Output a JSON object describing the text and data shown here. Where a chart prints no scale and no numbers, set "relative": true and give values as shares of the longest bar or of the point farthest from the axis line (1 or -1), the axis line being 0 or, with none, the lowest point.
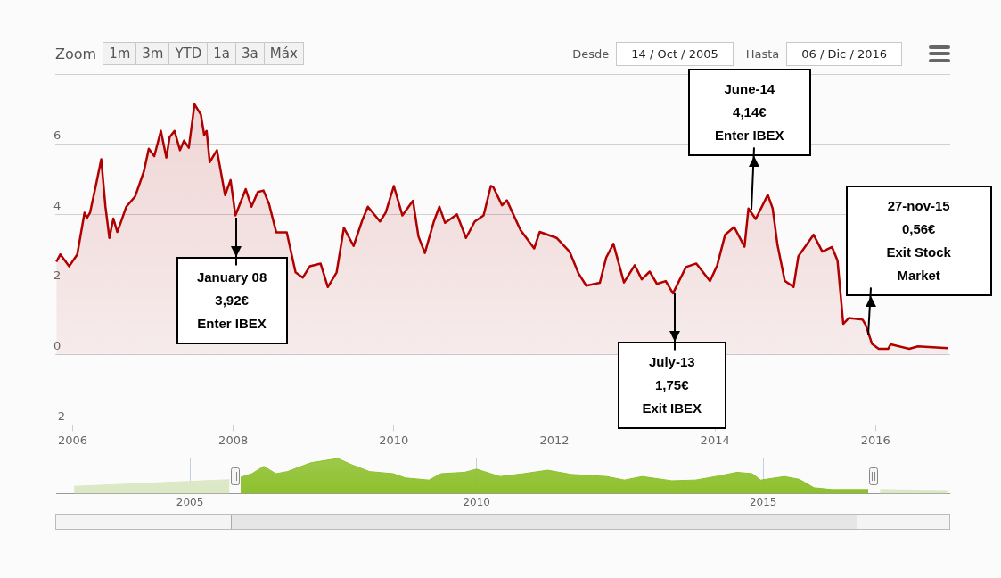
{
  "chart_data": [
    {
      "type": "area",
      "grid": "y",
      "xlim": [
        "2005-10-14",
        "2016-12-06"
      ],
      "xticks": [
        "2006",
        "2008",
        "2010",
        "2012",
        "2014",
        "2016"
      ],
      "ylim": [
        -2,
        8
      ],
      "yticks": [
        -2,
        0,
        2,
        4,
        6,
        {
          "value": 8,
          "label": null
        }
      ],
      "annotations": [
        "Zoom",
        "1m",
        "3m",
        "YTD",
        "1a",
        "3a",
        "Máx",
        "Desde",
        "14 / Oct / 2005",
        "Hasta",
        "06 / Dic / 2016",
        {
          "text": "January 08\n3,92€\nEnter IBEX",
          "x": "2008-01-15",
          "y": 3.92
        },
        {
          "text": "June-14\n4,14€\nEnter IBEX",
          "x": "2014-06-15",
          "y": 4.14
        },
        {
          "text": "July-13\n1,75€\nExit IBEX",
          "x": "2013-07-01",
          "y": 1.75
        },
        {
          "text": "27-nov-15\n0,56€\nExit Stock\nMarket",
          "x": "2015-11-27",
          "y": 0.56
        }
      ],
      "x": [
        "2005-10-19",
        "2005-11-06",
        "2005-12-16",
        "2006-01-22",
        "2006-02-24",
        "2006-03-07",
        "2006-03-21",
        "2006-04-16",
        "2006-05-11",
        "2006-05-30",
        "2006-06-17",
        "2006-07-05",
        "2006-07-23",
        "2006-08-07",
        "2006-09-02",
        "2006-10-12",
        "2006-11-21",
        "2006-12-13",
        "2007-01-07",
        "2007-02-06",
        "2007-03-03",
        "2007-03-18",
        "2007-04-09",
        "2007-05-04",
        "2007-05-22",
        "2007-06-13",
        "2007-07-09",
        "2007-08-07",
        "2007-08-22",
        "2007-09-02",
        "2007-09-16",
        "2007-10-19",
        "2007-11-25",
        "2007-12-20",
        "2008-01-11",
        "2008-02-27",
        "2008-03-24",
        "2008-04-22",
        "2008-05-18",
        "2008-06-12",
        "2008-07-15",
        "2008-09-01",
        "2008-10-11",
        "2008-11-13",
        "2008-12-15",
        "2009-02-02",
        "2009-03-07",
        "2009-04-16",
        "2009-05-19",
        "2009-07-02",
        "2009-08-11",
        "2009-09-05",
        "2009-10-30",
        "2009-11-25",
        "2010-01-01",
        "2010-02-09",
        "2010-03-29",
        "2010-04-23",
        "2010-05-22",
        "2010-07-02",
        "2010-07-27",
        "2010-08-22",
        "2010-10-15",
        "2010-11-25",
        "2011-01-04",
        "2011-02-13",
        "2011-03-18",
        "2011-03-29",
        "2011-05-08",
        "2011-05-30",
        "2011-07-31",
        "2011-10-01",
        "2011-10-26",
        "2012-01-11",
        "2012-03-10",
        "2012-04-19",
        "2012-05-25",
        "2012-07-26",
        "2012-08-24",
        "2012-09-26",
        "2012-11-13",
        "2013-01-01",
        "2013-02-02",
        "2013-03-10",
        "2013-04-12",
        "2013-05-22",
        "2013-06-24",
        "2013-08-22",
        "2013-10-08",
        "2013-12-09",
        "2014-01-11",
        "2014-02-16",
        "2014-03-29",
        "2014-05-15",
        "2014-06-02",
        "2014-07-05",
        "2014-08-29",
        "2014-09-20",
        "2014-10-12",
        "2014-11-14",
        "2014-12-24",
        "2015-01-15",
        "2015-03-25",
        "2015-05-04",
        "2015-06-17",
        "2015-07-12",
        "2015-08-07",
        "2015-09-02",
        "2015-11-03",
        "2015-11-17",
        "2015-12-16",
        "2016-01-15",
        "2016-02-27",
        "2016-03-10",
        "2016-06-02",
        "2016-07-12",
        "2016-11-25"
      ],
      "series": [
        {
          "color": "#b00000",
          "values": [
            2.65,
            2.86,
            2.52,
            2.86,
            4.05,
            3.9,
            4.05,
            4.81,
            5.57,
            4.22,
            3.33,
            3.88,
            3.5,
            3.76,
            4.22,
            4.51,
            5.23,
            5.87,
            5.66,
            6.38,
            5.62,
            6.2,
            6.38,
            5.83,
            6.1,
            5.9,
            7.14,
            6.84,
            6.26,
            6.38,
            5.49,
            5.83,
            4.55,
            4.98,
            3.97,
            4.72,
            4.22,
            4.64,
            4.68,
            4.3,
            3.49,
            3.49,
            2.35,
            2.2,
            2.52,
            2.6,
            1.93,
            2.35,
            3.62,
            3.1,
            3.84,
            4.22,
            3.8,
            4.05,
            4.81,
            3.97,
            4.39,
            3.37,
            2.9,
            3.8,
            4.22,
            3.76,
            4.0,
            3.33,
            3.8,
            3.97,
            4.81,
            4.78,
            4.26,
            4.4,
            3.55,
            3.03,
            3.5,
            3.33,
            2.94,
            2.33,
            1.97,
            2.05,
            2.77,
            3.16,
            2.06,
            2.55,
            2.15,
            2.37,
            2.02,
            2.1,
            1.75,
            2.5,
            2.6,
            2.1,
            2.55,
            3.42,
            3.64,
            3.08,
            4.17,
            3.87,
            4.56,
            4.17,
            3.13,
            2.11,
            1.93,
            2.81,
            3.42,
            2.94,
            3.07,
            2.68,
            0.88,
            1.05,
            1.0,
            0.85,
            0.31,
            0.17,
            0.17,
            0.3,
            0.17,
            0.24,
            0.19
          ]
        }
      ]
    },
    {
      "type": "area",
      "relative": true,
      "grid": "x",
      "xlim": [
        "2002-09",
        "2018-04"
      ],
      "xticks": [
        "2005",
        "2010",
        "2015"
      ],
      "series": [
        {
          "color": "#dbe8c4",
          "x": [
            "2002-12-24",
            "2005-09-10",
            "2011-01-01",
            "2017-01-15",
            "2018-03-20"
          ],
          "values": [
            0.21,
            0.4,
            null,
            0.12,
            0.09
          ]
        },
        {
          "color": "#8dc02c",
          "x": [
            "2005-11-20",
            "2006-01-30",
            "2006-04-16",
            "2006-07-02",
            "2006-09-13",
            "2007-02-10",
            "2007-07-31",
            "2007-10-30",
            "2008-02-20",
            "2008-07-19",
            "2008-10-04",
            "2009-03-04",
            "2009-05-19",
            "2009-10-16",
            "2010-01-01",
            "2010-05-30",
            "2010-10-27",
            "2011-03-29",
            "2011-08-26",
            "2012-04-09",
            "2012-07-31",
            "2012-11-21",
            "2013-05-30",
            "2013-10-27",
            "2014-03-29",
            "2014-07-19",
            "2014-10-23",
            "2014-12-16",
            "2015-05-16",
            "2015-08-19",
            "2015-11-21",
            "2016-03-14",
            "2016-11-01"
          ],
          "values": [
            0.47,
            0.57,
            0.78,
            0.57,
            0.63,
            0.88,
            1,
            0.82,
            0.63,
            0.57,
            0.45,
            0.39,
            0.57,
            0.61,
            0.7,
            0.49,
            0.57,
            0.67,
            0.55,
            0.49,
            0.39,
            0.49,
            0.37,
            0.39,
            0.51,
            0.61,
            0.57,
            0.39,
            0.49,
            0.41,
            0.17,
            0.12,
            0.12
          ]
        }
      ]
    }
  ]
}
